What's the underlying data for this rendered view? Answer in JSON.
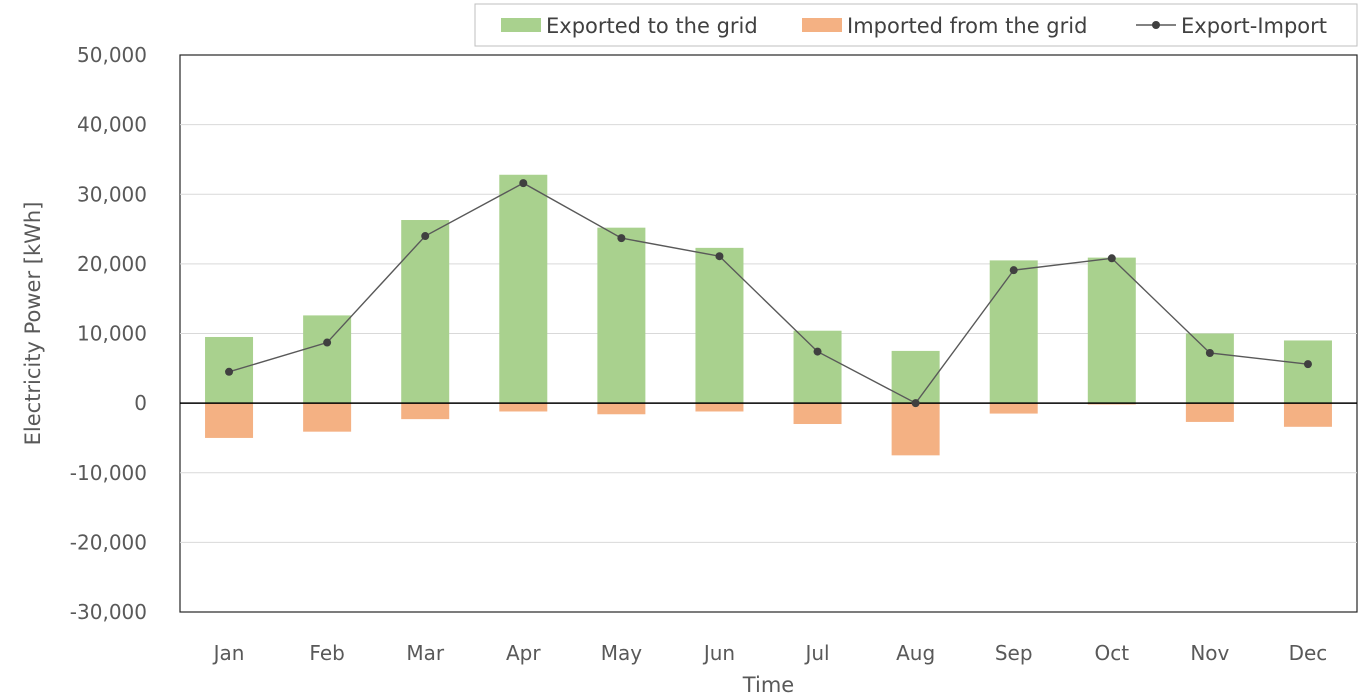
{
  "chart_data": {
    "type": "bar",
    "title": "",
    "xlabel": "Time",
    "ylabel": "Electricity Power [kWh]",
    "ylim": [
      -30000,
      50000
    ],
    "yticks": [
      50000,
      40000,
      30000,
      20000,
      10000,
      0,
      -10000,
      -20000,
      -30000
    ],
    "ytick_labels": [
      "50,000",
      "40,000",
      "30,000",
      "20,000",
      "10,000",
      "0",
      "-10,000",
      "-20,000",
      "-30,000"
    ],
    "grid": true,
    "legend_position": "top-right",
    "categories": [
      "Jan",
      "Feb",
      "Mar",
      "Apr",
      "May",
      "Jun",
      "Jul",
      "Aug",
      "Sep",
      "Oct",
      "Nov",
      "Dec"
    ],
    "series": [
      {
        "name": "Exported to the grid",
        "kind": "bar",
        "color": "#a9d18e",
        "values": [
          9500,
          12600,
          26300,
          32800,
          25200,
          22300,
          10400,
          7500,
          20500,
          20900,
          10000,
          9000
        ]
      },
      {
        "name": "Imported from the grid",
        "kind": "bar",
        "color": "#f4b183",
        "values": [
          -5000,
          -4100,
          -2300,
          -1200,
          -1600,
          -1200,
          -3000,
          -7500,
          -1500,
          -200,
          -2700,
          -3400
        ]
      },
      {
        "name": "Export-Import",
        "kind": "line",
        "color": "#595959",
        "marker_color": "#404040",
        "values": [
          4500,
          8700,
          24000,
          31600,
          23700,
          21100,
          7400,
          0,
          19100,
          20800,
          7200,
          5600
        ]
      }
    ]
  }
}
